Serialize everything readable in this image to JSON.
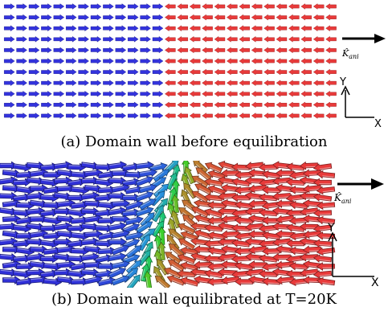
{
  "panels": [
    {
      "caption": "(a) Domain wall before equilibration",
      "anisotropy_label": "K̂",
      "anisotropy_subscript": "ani",
      "axis_y": "Y",
      "axis_x": "X",
      "left_domain_color": "#3333dd",
      "right_domain_color": "#e83a3a",
      "state": "sharp"
    },
    {
      "caption": "(b) Domain wall equilibrated at T=20K",
      "anisotropy_label": "K̂",
      "anisotropy_subscript": "ani",
      "axis_y": "Y",
      "axis_x": "X",
      "left_domain_color": "#3030d8",
      "right_domain_color": "#e83a3a",
      "state": "equilibrated"
    }
  ]
}
